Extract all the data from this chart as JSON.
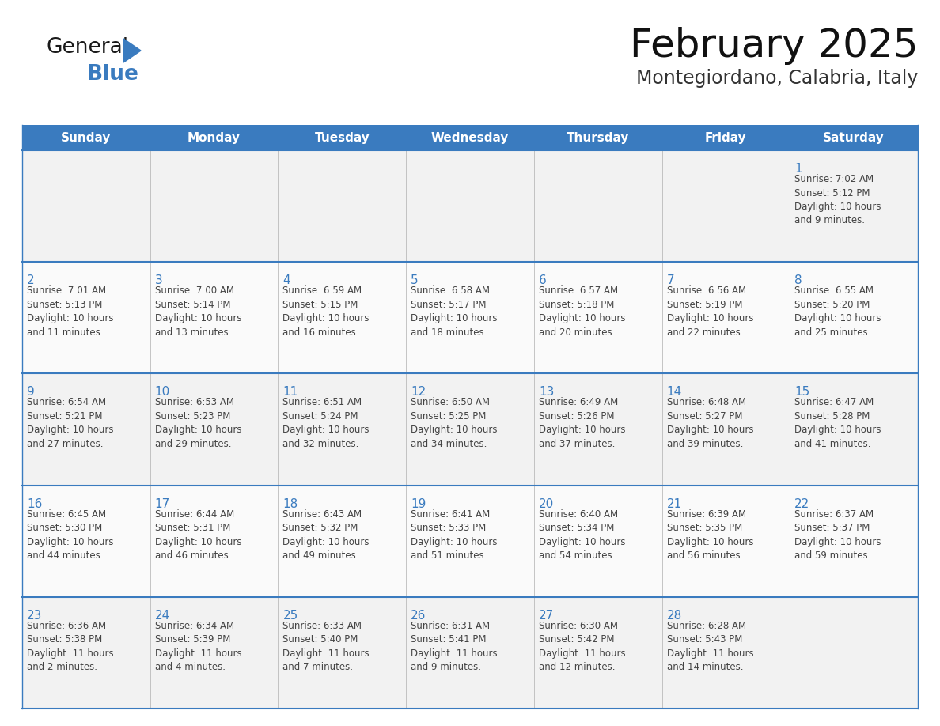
{
  "title": "February 2025",
  "subtitle": "Montegiordano, Calabria, Italy",
  "header_color": "#3a7bbf",
  "header_text_color": "#ffffff",
  "cell_bg_even": "#f0f0f0",
  "cell_bg_odd": "#ffffff",
  "day_number_color": "#3a7bbf",
  "text_color": "#444444",
  "line_color": "#3a7bbf",
  "border_color": "#3a7bbf",
  "days_of_week": [
    "Sunday",
    "Monday",
    "Tuesday",
    "Wednesday",
    "Thursday",
    "Friday",
    "Saturday"
  ],
  "weeks": [
    [
      {
        "day": null,
        "info": null
      },
      {
        "day": null,
        "info": null
      },
      {
        "day": null,
        "info": null
      },
      {
        "day": null,
        "info": null
      },
      {
        "day": null,
        "info": null
      },
      {
        "day": null,
        "info": null
      },
      {
        "day": 1,
        "info": "Sunrise: 7:02 AM\nSunset: 5:12 PM\nDaylight: 10 hours\nand 9 minutes."
      }
    ],
    [
      {
        "day": 2,
        "info": "Sunrise: 7:01 AM\nSunset: 5:13 PM\nDaylight: 10 hours\nand 11 minutes."
      },
      {
        "day": 3,
        "info": "Sunrise: 7:00 AM\nSunset: 5:14 PM\nDaylight: 10 hours\nand 13 minutes."
      },
      {
        "day": 4,
        "info": "Sunrise: 6:59 AM\nSunset: 5:15 PM\nDaylight: 10 hours\nand 16 minutes."
      },
      {
        "day": 5,
        "info": "Sunrise: 6:58 AM\nSunset: 5:17 PM\nDaylight: 10 hours\nand 18 minutes."
      },
      {
        "day": 6,
        "info": "Sunrise: 6:57 AM\nSunset: 5:18 PM\nDaylight: 10 hours\nand 20 minutes."
      },
      {
        "day": 7,
        "info": "Sunrise: 6:56 AM\nSunset: 5:19 PM\nDaylight: 10 hours\nand 22 minutes."
      },
      {
        "day": 8,
        "info": "Sunrise: 6:55 AM\nSunset: 5:20 PM\nDaylight: 10 hours\nand 25 minutes."
      }
    ],
    [
      {
        "day": 9,
        "info": "Sunrise: 6:54 AM\nSunset: 5:21 PM\nDaylight: 10 hours\nand 27 minutes."
      },
      {
        "day": 10,
        "info": "Sunrise: 6:53 AM\nSunset: 5:23 PM\nDaylight: 10 hours\nand 29 minutes."
      },
      {
        "day": 11,
        "info": "Sunrise: 6:51 AM\nSunset: 5:24 PM\nDaylight: 10 hours\nand 32 minutes."
      },
      {
        "day": 12,
        "info": "Sunrise: 6:50 AM\nSunset: 5:25 PM\nDaylight: 10 hours\nand 34 minutes."
      },
      {
        "day": 13,
        "info": "Sunrise: 6:49 AM\nSunset: 5:26 PM\nDaylight: 10 hours\nand 37 minutes."
      },
      {
        "day": 14,
        "info": "Sunrise: 6:48 AM\nSunset: 5:27 PM\nDaylight: 10 hours\nand 39 minutes."
      },
      {
        "day": 15,
        "info": "Sunrise: 6:47 AM\nSunset: 5:28 PM\nDaylight: 10 hours\nand 41 minutes."
      }
    ],
    [
      {
        "day": 16,
        "info": "Sunrise: 6:45 AM\nSunset: 5:30 PM\nDaylight: 10 hours\nand 44 minutes."
      },
      {
        "day": 17,
        "info": "Sunrise: 6:44 AM\nSunset: 5:31 PM\nDaylight: 10 hours\nand 46 minutes."
      },
      {
        "day": 18,
        "info": "Sunrise: 6:43 AM\nSunset: 5:32 PM\nDaylight: 10 hours\nand 49 minutes."
      },
      {
        "day": 19,
        "info": "Sunrise: 6:41 AM\nSunset: 5:33 PM\nDaylight: 10 hours\nand 51 minutes."
      },
      {
        "day": 20,
        "info": "Sunrise: 6:40 AM\nSunset: 5:34 PM\nDaylight: 10 hours\nand 54 minutes."
      },
      {
        "day": 21,
        "info": "Sunrise: 6:39 AM\nSunset: 5:35 PM\nDaylight: 10 hours\nand 56 minutes."
      },
      {
        "day": 22,
        "info": "Sunrise: 6:37 AM\nSunset: 5:37 PM\nDaylight: 10 hours\nand 59 minutes."
      }
    ],
    [
      {
        "day": 23,
        "info": "Sunrise: 6:36 AM\nSunset: 5:38 PM\nDaylight: 11 hours\nand 2 minutes."
      },
      {
        "day": 24,
        "info": "Sunrise: 6:34 AM\nSunset: 5:39 PM\nDaylight: 11 hours\nand 4 minutes."
      },
      {
        "day": 25,
        "info": "Sunrise: 6:33 AM\nSunset: 5:40 PM\nDaylight: 11 hours\nand 7 minutes."
      },
      {
        "day": 26,
        "info": "Sunrise: 6:31 AM\nSunset: 5:41 PM\nDaylight: 11 hours\nand 9 minutes."
      },
      {
        "day": 27,
        "info": "Sunrise: 6:30 AM\nSunset: 5:42 PM\nDaylight: 11 hours\nand 12 minutes."
      },
      {
        "day": 28,
        "info": "Sunrise: 6:28 AM\nSunset: 5:43 PM\nDaylight: 11 hours\nand 14 minutes."
      },
      {
        "day": null,
        "info": null
      }
    ]
  ],
  "logo_text_general": "General",
  "logo_text_blue": "Blue",
  "logo_color_general": "#1a1a1a",
  "logo_color_blue": "#3a7bbf",
  "logo_triangle_color": "#3a7bbf",
  "title_fontsize": 36,
  "subtitle_fontsize": 17,
  "header_fontsize": 11,
  "day_num_fontsize": 11,
  "info_fontsize": 8.5
}
